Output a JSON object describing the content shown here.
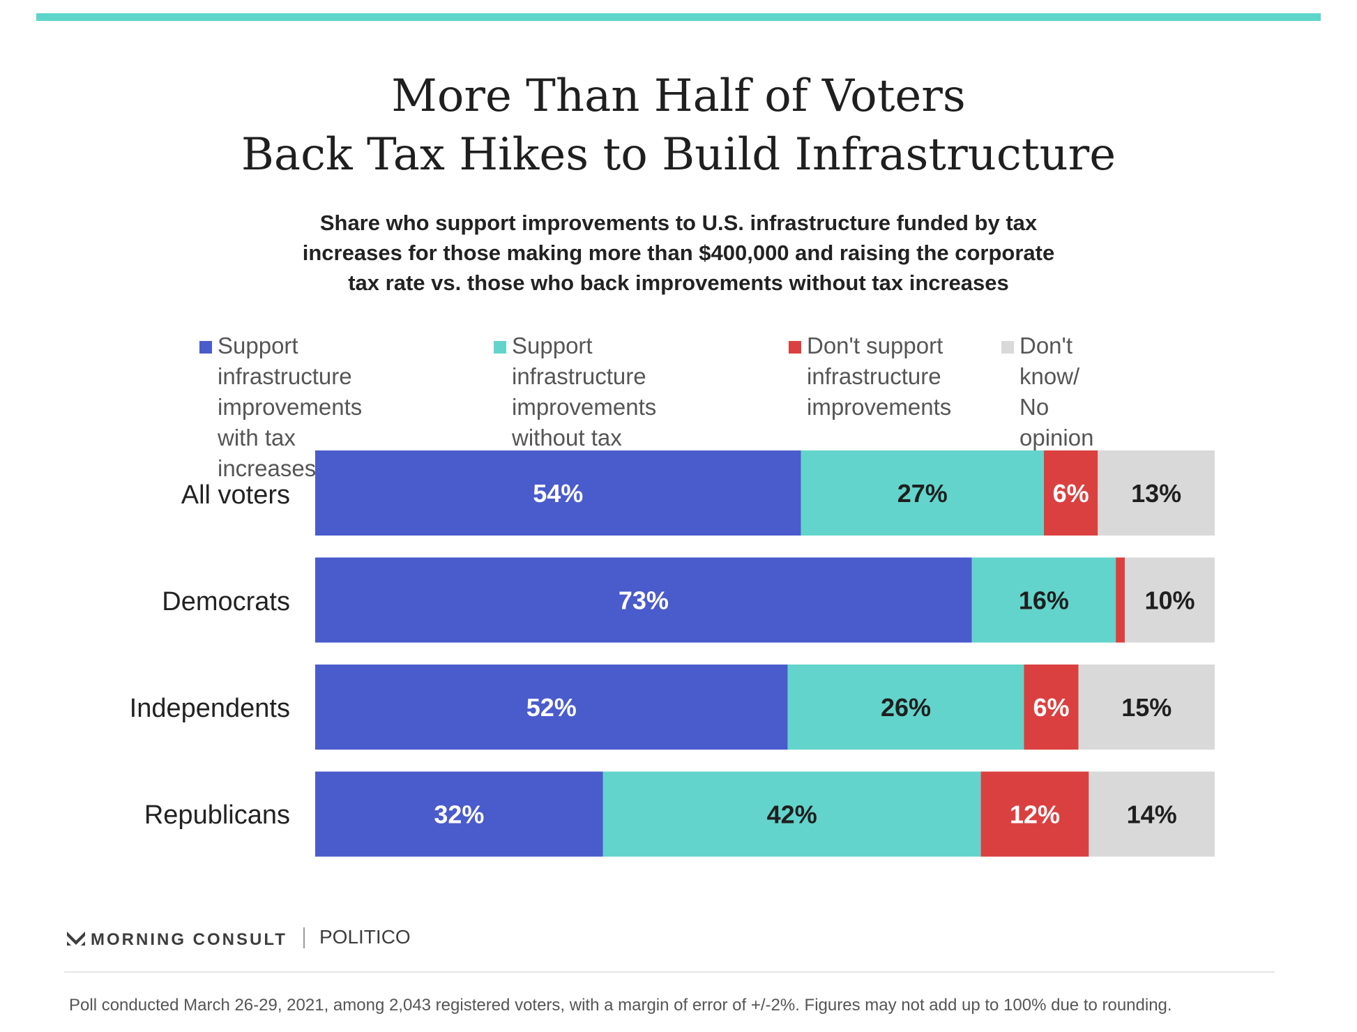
{
  "title_lines": [
    "More Than Half of Voters",
    "Back Tax Hikes to Build Infrastructure"
  ],
  "subtitle_lines": [
    "Share who support improvements to U.S. infrastructure funded by tax",
    "increases for those making more than $400,000 and raising the corporate",
    "tax rate vs. those who back improvements without tax increases"
  ],
  "colors": {
    "accent_rule": "#5dd5cb",
    "with_tax": "#4a5bcc",
    "without_tax": "#63d4cb",
    "dont_support": "#db4040",
    "dont_know": "#d9d9d9"
  },
  "chart_data": {
    "type": "bar",
    "orientation": "horizontal",
    "stacked": true,
    "title": "More Than Half of Voters Back Tax Hikes to Build Infrastructure",
    "subtitle": "Share who support improvements to U.S. infrastructure funded by tax increases for those making more than $400,000 and raising the corporate tax rate vs. those who back improvements without tax increases",
    "categories": [
      "All voters",
      "Democrats",
      "Independents",
      "Republicans"
    ],
    "series": [
      {
        "name": "Support infrastructure improvements with tax increases",
        "legend_lines": [
          "Support infrastructure",
          "improvements",
          "with tax increases"
        ],
        "values": [
          54,
          73,
          52,
          32
        ],
        "labels": [
          "54%",
          "73%",
          "52%",
          "32%"
        ]
      },
      {
        "name": "Support infrastructure improvements without tax increases",
        "legend_lines": [
          "Support infrastructure",
          "improvements",
          "without tax increases"
        ],
        "values": [
          27,
          16,
          26,
          42
        ],
        "labels": [
          "27%",
          "16%",
          "26%",
          "42%"
        ]
      },
      {
        "name": "Don't support infrastructure improvements",
        "legend_lines": [
          "Don't support",
          "infrastructure",
          "improvements"
        ],
        "values": [
          6,
          1,
          6,
          12
        ],
        "labels": [
          "6%",
          "",
          "6%",
          "12%"
        ]
      },
      {
        "name": "Don't know/ No opinion",
        "legend_lines": [
          "Don't know/",
          "No opinion"
        ],
        "values": [
          13,
          10,
          15,
          14
        ],
        "labels": [
          "13%",
          "10%",
          "15%",
          "14%"
        ]
      }
    ],
    "xlim": [
      0,
      100
    ],
    "legend": "top",
    "grid": false
  },
  "footer": {
    "brand": "MORNING CONSULT",
    "partner": "POLITICO",
    "note": "Poll conducted March 26-29, 2021, among 2,043 registered voters, with a margin of error of +/-2%. Figures may not add up to 100% due to rounding."
  }
}
